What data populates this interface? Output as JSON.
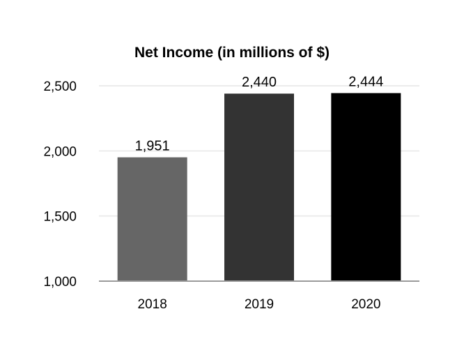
{
  "chart_data": {
    "type": "bar",
    "title": "Net Income (in millions of $)",
    "xlabel": "",
    "ylabel": "",
    "categories": [
      "2018",
      "2019",
      "2020"
    ],
    "values": [
      1951,
      2440,
      2444
    ],
    "value_labels": [
      "1,951",
      "2,440",
      "2,444"
    ],
    "bar_colors": [
      "#666666",
      "#333333",
      "#000000"
    ],
    "ylim": [
      1000,
      2500
    ],
    "yticks": [
      1000,
      1500,
      2000,
      2500
    ],
    "ytick_labels": [
      "1,000",
      "1,500",
      "2,000",
      "2,500"
    ],
    "grid": true,
    "legend": "none"
  }
}
